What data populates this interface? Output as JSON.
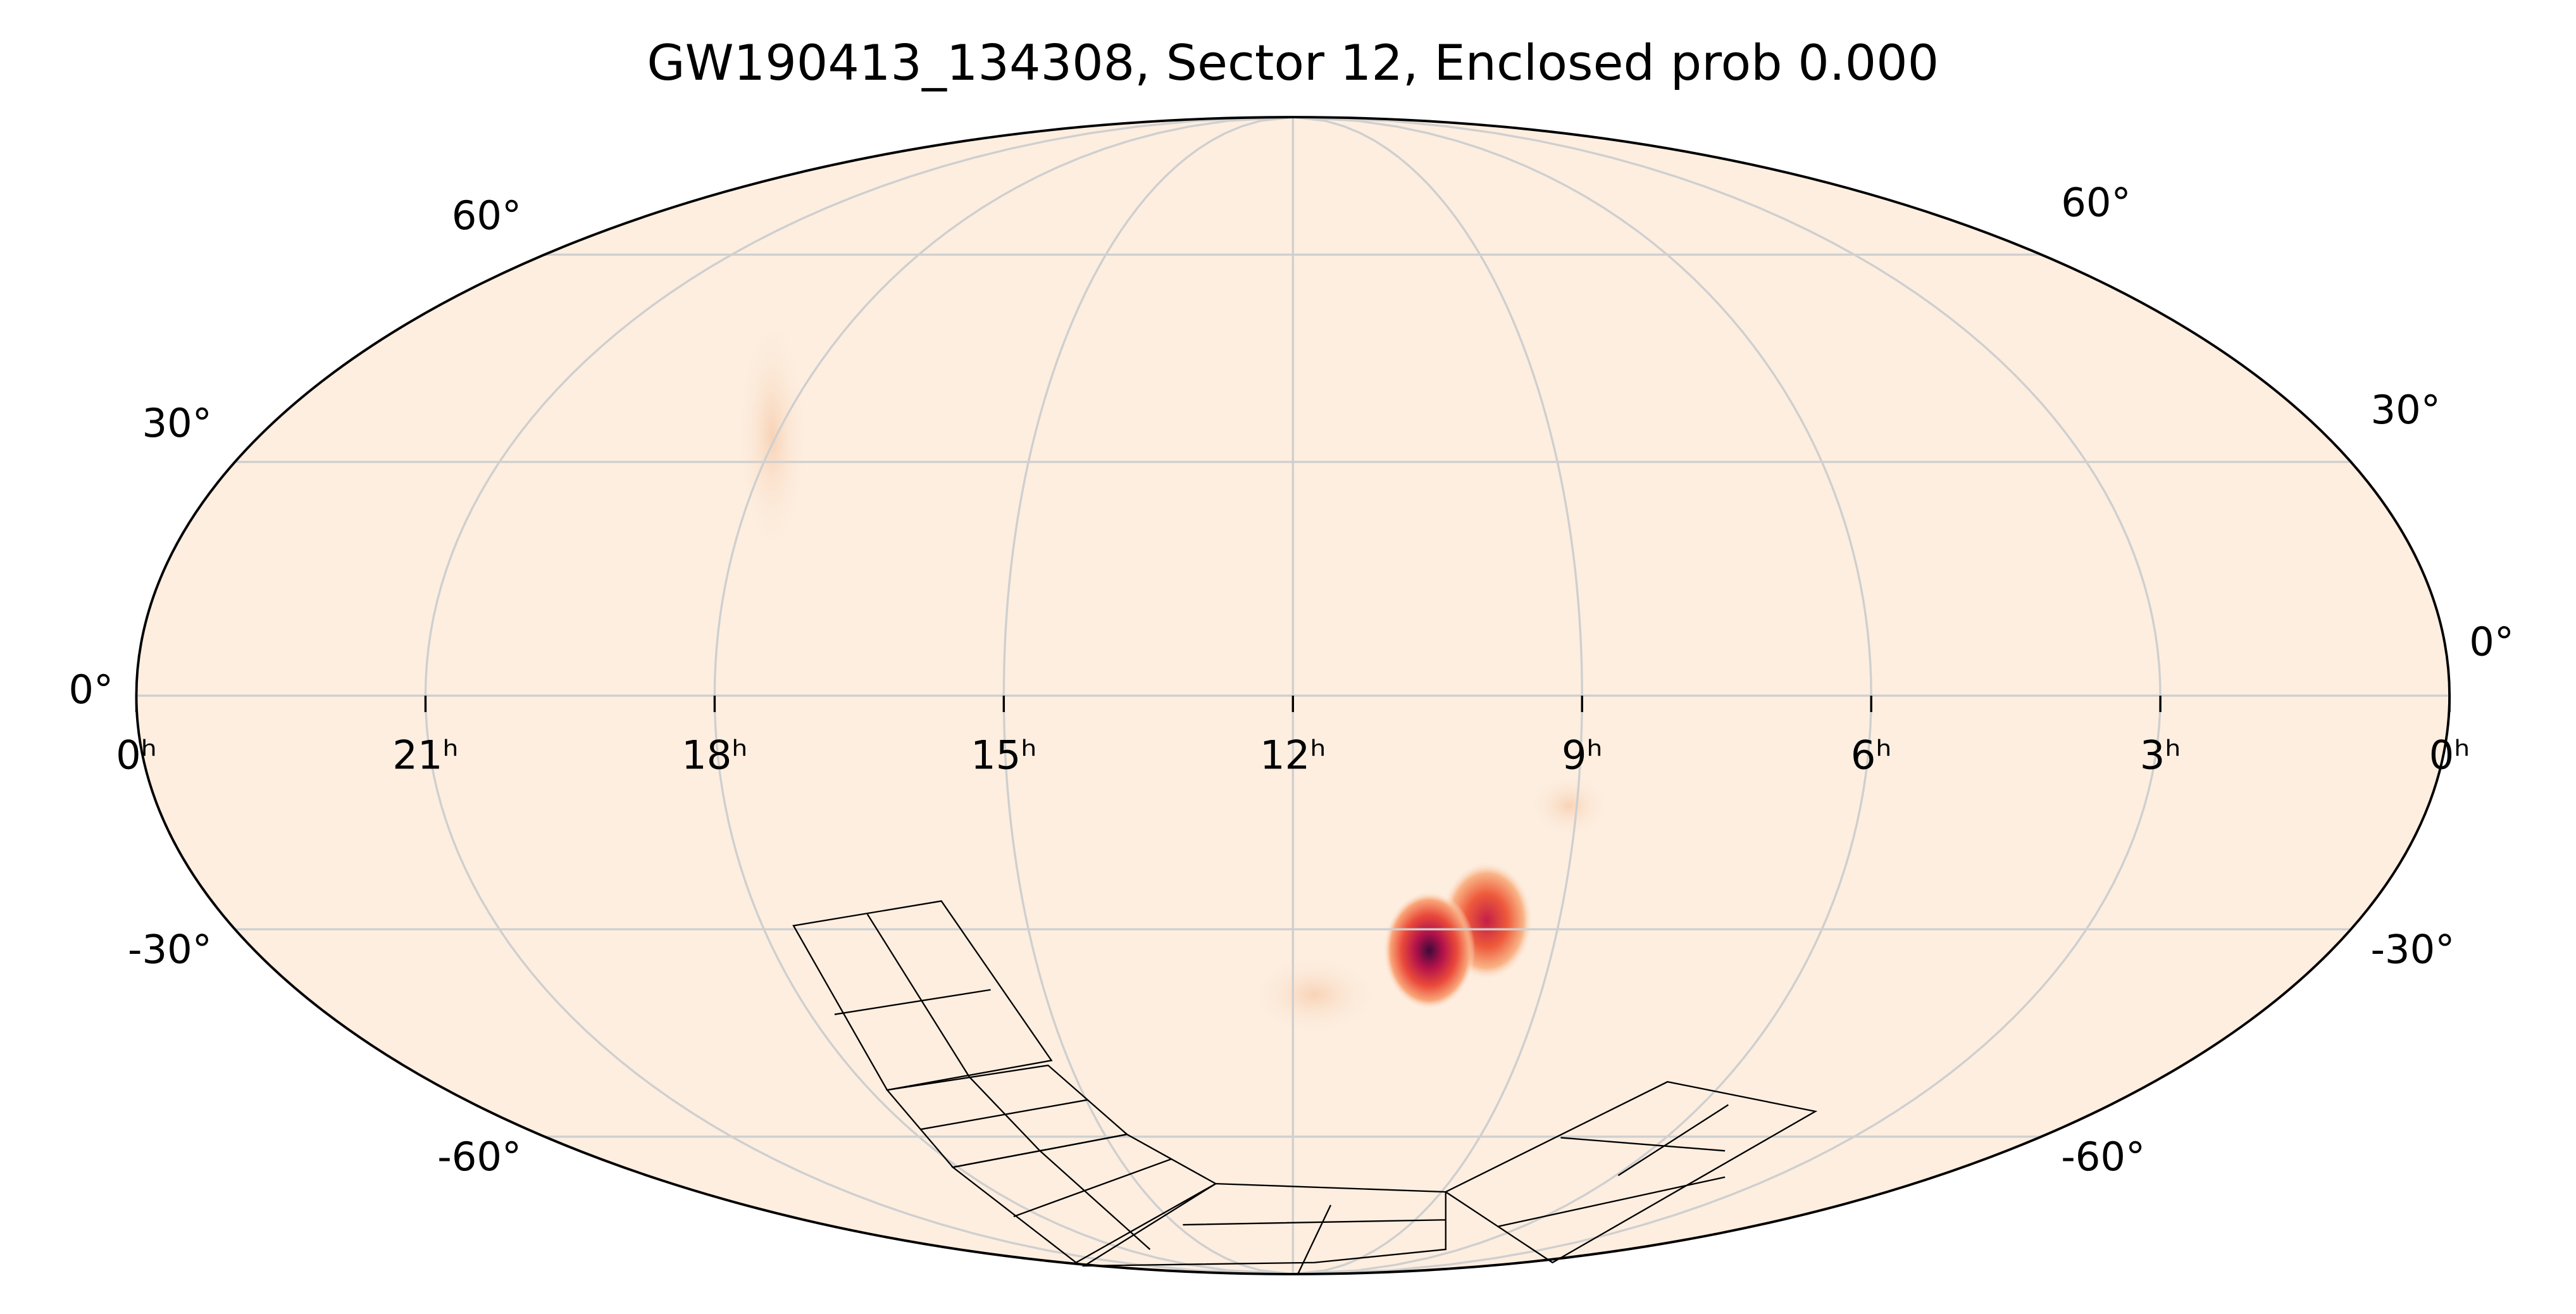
{
  "chart_data": {
    "type": "mollweide",
    "title": "GW190413_134308, Sector 12, Enclosed prob 0.000",
    "xticks": [
      {
        "value": 24,
        "label": "0ʰ"
      },
      {
        "value": 21,
        "label": "21ʰ"
      },
      {
        "value": 18,
        "label": "18ʰ"
      },
      {
        "value": 15,
        "label": "15ʰ"
      },
      {
        "value": 12,
        "label": "12ʰ"
      },
      {
        "value": 9,
        "label": "9ʰ"
      },
      {
        "value": 6,
        "label": "6ʰ"
      },
      {
        "value": 3,
        "label": "3ʰ"
      },
      {
        "value": 0,
        "label": "0ʰ"
      }
    ],
    "yticks": [
      {
        "value": 60,
        "label": "60°"
      },
      {
        "value": 30,
        "label": "30°"
      },
      {
        "value": 0,
        "label": "0°"
      },
      {
        "value": -30,
        "label": "-30°"
      },
      {
        "value": -60,
        "label": "-60°"
      }
    ],
    "grid": true
  }
}
